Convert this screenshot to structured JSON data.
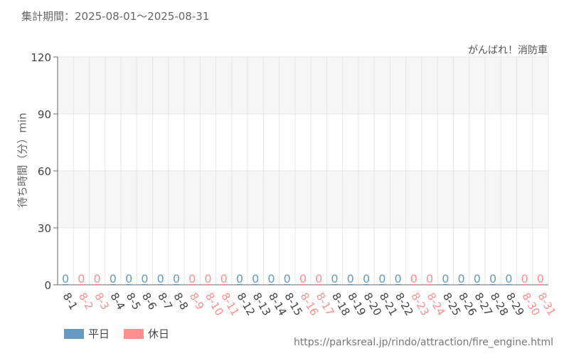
{
  "header": {
    "period_label": "集計期間：2025-08-01～2025-08-31"
  },
  "chart_data": {
    "type": "bar",
    "title": "がんばれ！消防車",
    "ylabel": "待ち時間（分）min",
    "xlabel": "",
    "ylim": [
      0,
      120
    ],
    "yticks": [
      0,
      30,
      60,
      90,
      120
    ],
    "grid": true,
    "legend_position": "bottom-left",
    "categories": [
      "8-1",
      "8-2",
      "8-3",
      "8-4",
      "8-5",
      "8-6",
      "8-7",
      "8-8",
      "8-9",
      "8-10",
      "8-11",
      "8-12",
      "8-13",
      "8-14",
      "8-15",
      "8-16",
      "8-17",
      "8-18",
      "8-19",
      "8-20",
      "8-21",
      "8-22",
      "8-23",
      "8-24",
      "8-25",
      "8-26",
      "8-27",
      "8-28",
      "8-29",
      "8-30",
      "8-31"
    ],
    "values": [
      0,
      0,
      0,
      0,
      0,
      0,
      0,
      0,
      0,
      0,
      0,
      0,
      0,
      0,
      0,
      0,
      0,
      0,
      0,
      0,
      0,
      0,
      0,
      0,
      0,
      0,
      0,
      0,
      0,
      0,
      0
    ],
    "day_type": [
      "weekday",
      "holiday",
      "holiday",
      "weekday",
      "weekday",
      "weekday",
      "weekday",
      "weekday",
      "holiday",
      "holiday",
      "holiday",
      "weekday",
      "weekday",
      "weekday",
      "weekday",
      "holiday",
      "holiday",
      "weekday",
      "weekday",
      "weekday",
      "weekday",
      "weekday",
      "holiday",
      "holiday",
      "weekday",
      "weekday",
      "weekday",
      "weekday",
      "weekday",
      "holiday",
      "holiday"
    ],
    "legend": [
      {
        "key": "weekday",
        "label": "平日",
        "color": "#6699c4"
      },
      {
        "key": "holiday",
        "label": "休日",
        "color": "#ff8f8f"
      }
    ],
    "colors": {
      "weekday_label": "#444444",
      "holiday_label": "#ff8f8f"
    }
  },
  "footer": {
    "source_url": "https://parksreal.jp/rindo/attraction/fire_engine.html"
  }
}
